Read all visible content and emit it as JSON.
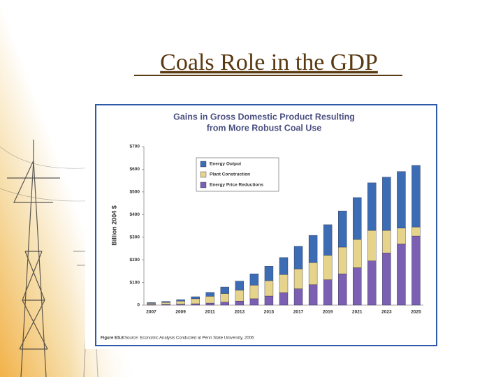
{
  "slide": {
    "title": "Coals Role in the GDP"
  },
  "chart_data": {
    "type": "stacked-bar",
    "title_lines": [
      "Gains in Gross Domestic Product Resulting",
      "from More Robust Coal Use"
    ],
    "y_label": "Billion 2004 $",
    "categories": [
      "2007",
      null,
      "2009",
      null,
      "2011",
      null,
      "2013",
      null,
      "2015",
      null,
      "2017",
      null,
      "2019",
      null,
      "2021",
      null,
      "2023",
      null,
      "2025"
    ],
    "series": [
      {
        "name": "Energy Output",
        "color": "#3b6cb4",
        "values": [
          3,
          4,
          6,
          9,
          17,
          29,
          40,
          50,
          64,
          75,
          100,
          120,
          135,
          160,
          185,
          210,
          235,
          250,
          272
        ]
      },
      {
        "name": "Plant Construction",
        "color": "#e6d38c",
        "values": [
          6,
          9,
          14,
          22,
          30,
          38,
          48,
          60,
          68,
          80,
          88,
          98,
          108,
          118,
          125,
          135,
          100,
          70,
          40
        ]
      },
      {
        "name": "Energy Price Reductions",
        "color": "#7b5fb2",
        "values": [
          2,
          3,
          4,
          6,
          9,
          13,
          18,
          28,
          40,
          55,
          72,
          90,
          112,
          138,
          165,
          195,
          230,
          270,
          305
        ]
      }
    ],
    "ylim": [
      0,
      700
    ],
    "yticks": [
      0,
      {
        "value": 100,
        "label": "$100"
      },
      {
        "value": 200,
        "label": "$200"
      },
      {
        "value": 300,
        "label": "$300"
      },
      {
        "value": 400,
        "label": "$400"
      },
      {
        "value": 500,
        "label": "$500"
      },
      {
        "value": 600,
        "label": "$600"
      },
      {
        "value": 700,
        "label": "$700"
      }
    ],
    "legend": "upper-left",
    "caption": {
      "figure": "Figure ES.8",
      "source": "Source: Economic Analysis Conducted at Penn State University, 2006"
    }
  }
}
